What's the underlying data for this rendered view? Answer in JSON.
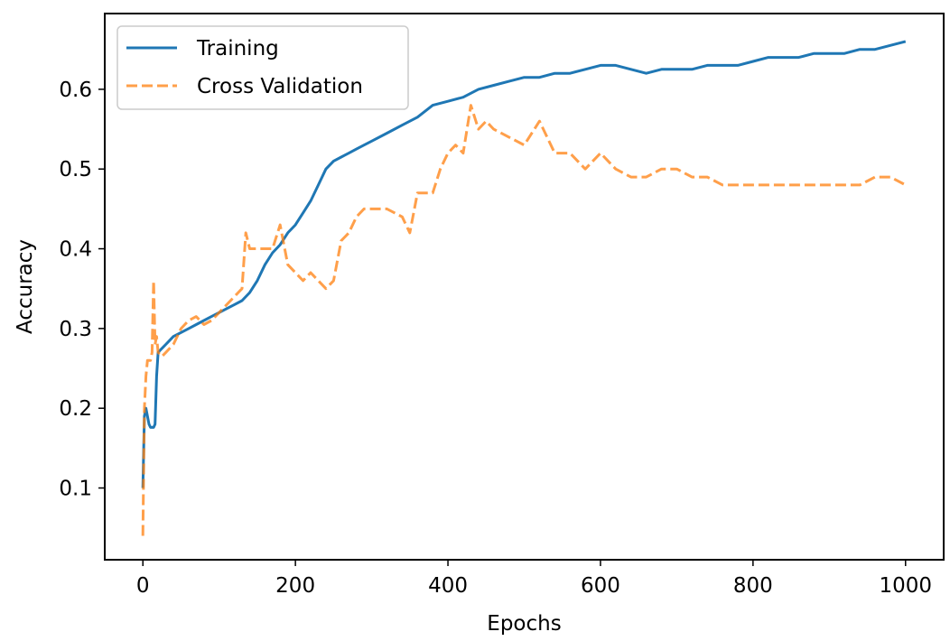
{
  "chart_data": {
    "type": "line",
    "title": "",
    "xlabel": "Epochs",
    "ylabel": "Accuracy",
    "xlim": [
      -50,
      1050
    ],
    "ylim": [
      0.01,
      0.695
    ],
    "xticks": [
      0,
      200,
      400,
      600,
      800,
      1000
    ],
    "yticks": [
      0.1,
      0.2,
      0.3,
      0.4,
      0.5,
      0.6
    ],
    "xtick_labels": [
      "0",
      "200",
      "400",
      "600",
      "800",
      "1000"
    ],
    "ytick_labels": [
      "0.1",
      "0.2",
      "0.3",
      "0.4",
      "0.5",
      "0.6"
    ],
    "grid": false,
    "legend_position": "top-left",
    "series": [
      {
        "name": "Training",
        "color": "#1f77b4",
        "style": "solid",
        "x": [
          0,
          2,
          4,
          6,
          8,
          10,
          12,
          14,
          16,
          18,
          20,
          25,
          30,
          40,
          50,
          60,
          70,
          80,
          90,
          100,
          110,
          120,
          130,
          140,
          150,
          160,
          170,
          180,
          190,
          200,
          210,
          220,
          230,
          240,
          250,
          260,
          270,
          280,
          290,
          300,
          320,
          340,
          360,
          380,
          400,
          420,
          440,
          460,
          480,
          500,
          520,
          540,
          560,
          580,
          600,
          620,
          640,
          660,
          680,
          700,
          720,
          740,
          760,
          780,
          800,
          820,
          840,
          860,
          880,
          900,
          920,
          940,
          960,
          980,
          1000
        ],
        "y": [
          0.1,
          0.19,
          0.2,
          0.19,
          0.18,
          0.176,
          0.176,
          0.176,
          0.18,
          0.24,
          0.27,
          0.275,
          0.28,
          0.29,
          0.295,
          0.3,
          0.305,
          0.31,
          0.315,
          0.32,
          0.325,
          0.33,
          0.335,
          0.345,
          0.36,
          0.38,
          0.395,
          0.405,
          0.42,
          0.43,
          0.445,
          0.46,
          0.48,
          0.5,
          0.51,
          0.515,
          0.52,
          0.525,
          0.53,
          0.535,
          0.545,
          0.555,
          0.565,
          0.58,
          0.585,
          0.59,
          0.6,
          0.605,
          0.61,
          0.615,
          0.615,
          0.62,
          0.62,
          0.625,
          0.63,
          0.63,
          0.625,
          0.62,
          0.625,
          0.625,
          0.625,
          0.63,
          0.63,
          0.63,
          0.635,
          0.64,
          0.64,
          0.64,
          0.645,
          0.645,
          0.645,
          0.65,
          0.65,
          0.655,
          0.66
        ]
      },
      {
        "name": "Cross Validation",
        "color": "#ff7f0e",
        "style": "dashed",
        "x": [
          0,
          2,
          4,
          6,
          8,
          10,
          12,
          14,
          16,
          18,
          20,
          25,
          30,
          40,
          50,
          60,
          70,
          80,
          90,
          100,
          110,
          120,
          130,
          135,
          140,
          150,
          160,
          170,
          180,
          190,
          200,
          210,
          220,
          230,
          240,
          250,
          260,
          270,
          280,
          290,
          300,
          320,
          340,
          350,
          360,
          380,
          390,
          400,
          410,
          420,
          430,
          440,
          450,
          460,
          480,
          500,
          520,
          540,
          560,
          580,
          600,
          620,
          640,
          660,
          680,
          700,
          720,
          740,
          760,
          780,
          800,
          820,
          840,
          860,
          880,
          900,
          920,
          940,
          960,
          980,
          1000
        ],
        "y": [
          0.04,
          0.2,
          0.24,
          0.26,
          0.26,
          0.26,
          0.27,
          0.36,
          0.28,
          0.29,
          0.27,
          0.265,
          0.27,
          0.28,
          0.3,
          0.31,
          0.315,
          0.305,
          0.31,
          0.32,
          0.33,
          0.34,
          0.35,
          0.42,
          0.4,
          0.4,
          0.4,
          0.4,
          0.43,
          0.38,
          0.37,
          0.36,
          0.37,
          0.36,
          0.35,
          0.36,
          0.41,
          0.42,
          0.44,
          0.45,
          0.45,
          0.45,
          0.44,
          0.42,
          0.47,
          0.47,
          0.5,
          0.52,
          0.53,
          0.52,
          0.58,
          0.55,
          0.56,
          0.55,
          0.54,
          0.53,
          0.56,
          0.52,
          0.52,
          0.5,
          0.52,
          0.5,
          0.49,
          0.49,
          0.5,
          0.5,
          0.49,
          0.49,
          0.48,
          0.48,
          0.48,
          0.48,
          0.48,
          0.48,
          0.48,
          0.48,
          0.48,
          0.48,
          0.49,
          0.49,
          0.48
        ]
      }
    ]
  }
}
